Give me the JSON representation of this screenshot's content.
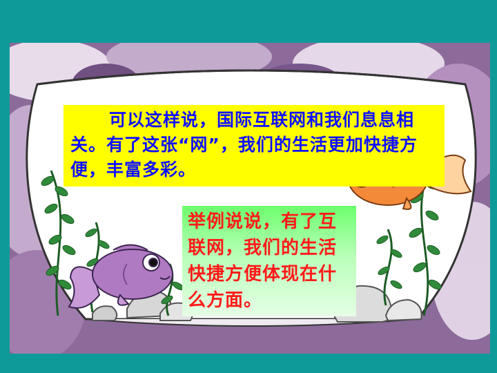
{
  "slide": {
    "paragraph": "可以这样说，国际互联网和我们息息相关。有了这张“网”，我们的生活更加快捷方便，丰富多彩。",
    "question": "举例说说，有了互联网，我们的生活快捷方便体现在什么方面。"
  },
  "colors": {
    "background": "#0f9a9a",
    "paragraph_box": "#ffff00",
    "paragraph_text": "#1010ff",
    "question_box": "#7dff7d",
    "question_text": "#ff1a1a"
  },
  "icons": [
    "fish-bowl-icon",
    "orange-fish-icon",
    "purple-fish-icon",
    "water-plant-icon",
    "rock-icon"
  ]
}
